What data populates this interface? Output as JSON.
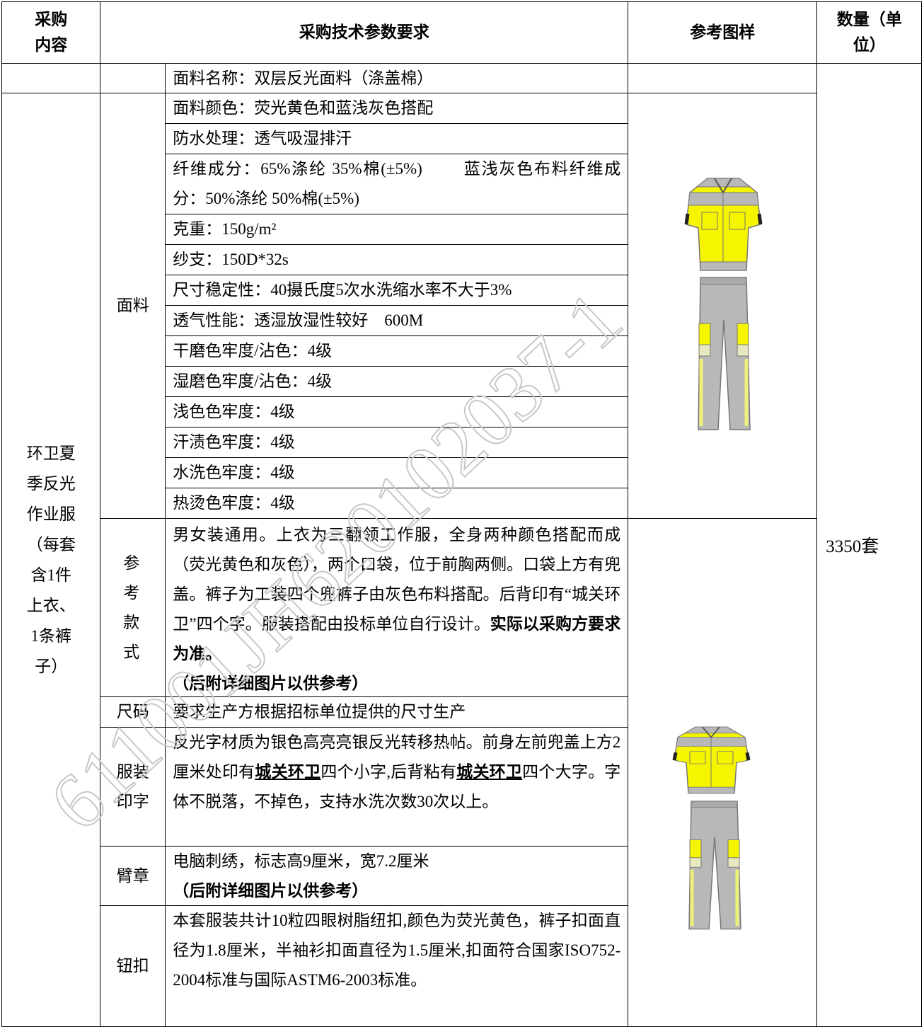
{
  "header": {
    "item": "采购内容",
    "spec": "采购技术参数要求",
    "image": "参考图样",
    "quantity": "数量（单位）"
  },
  "item": {
    "name": "环卫夏季反光作业服（每套含1件上衣、1条裤子）",
    "quantity": "3350套"
  },
  "fabric": {
    "label": "面料",
    "rows": [
      "面料名称：双层反光面料（涤盖棉）",
      "面料颜色：荧光黄色和蓝浅灰色搭配",
      "防水处理：透气吸湿排汗",
      "纤维成分：65%涤纶 35%棉(±5%)　　 蓝浅灰色布料纤维成分：50%涤纶 50%棉(±5%)",
      "克重：150g/m²",
      "纱支：150D*32s",
      "尺寸稳定性：40摄氏度5次水洗缩水率不大于3%",
      "透气性能：透湿放湿性较好　600M",
      "干磨色牢度/沾色：4级",
      "湿磨色牢度/沾色：4级",
      "浅色色牢度：4级",
      "汗渍色牢度：4级",
      "水洗色牢度：4级",
      "热烫色牢度：4级"
    ]
  },
  "style": {
    "label": "参考款式",
    "text": "男女装通用。上衣为三翻领工作服，全身两种颜色搭配而成（荧光黄色和灰色），两个口袋，位于前胸两侧。口袋上方有兜盖。裤子为工装四个兜裤子由灰色布料搭配。后背印有“城关环卫”四个字。服装搭配由投标单位自行设计。",
    "emphasis": "实际以采购方要求为准。",
    "note": "（后附详细图片以供参考）"
  },
  "size": {
    "label": "尺码",
    "text": "要求生产方根据招标单位提供的尺寸生产"
  },
  "printing": {
    "label": "服装印字",
    "parts": [
      "反光字材质为银色高亮亮银反光转移热帖。前身左前兜盖上方2厘米处印有",
      "城关环卫",
      "四个小字,后背粘有",
      "城关环卫",
      "四个大字。字体不脱落，不掉色，支持水洗次数30次以上。"
    ]
  },
  "armband": {
    "label": "臂章",
    "text": "电脑刺绣，标志高9厘米，宽7.2厘米",
    "note": "（后附详细图片以供参考）"
  },
  "button": {
    "label": "钮扣",
    "text": "本套服装共计10粒四眼树脂纽扣,颜色为荧光黄色，裤子扣面直径为1.8厘米，半袖衫扣面直径为1.5厘米,扣面符合国家ISO752-2004标准与国际ASTM6-2003标准。"
  },
  "watermark": "611001JH620102037-1"
}
